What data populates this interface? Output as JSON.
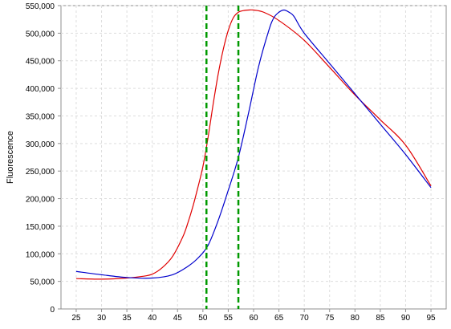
{
  "chart_data": {
    "type": "line",
    "title": "",
    "xlabel": "",
    "ylabel": "Fluorescence",
    "xlim": [
      22,
      98
    ],
    "ylim": [
      0,
      550000
    ],
    "x_ticks": [
      25,
      30,
      35,
      40,
      45,
      50,
      55,
      60,
      65,
      70,
      75,
      80,
      85,
      90,
      95
    ],
    "x_tick_labels": [
      "25",
      "30",
      "35",
      "40",
      "45",
      "50",
      "55",
      "60",
      "65",
      "70",
      "75",
      "80",
      "85",
      "90",
      "95"
    ],
    "y_ticks": [
      0,
      50000,
      100000,
      150000,
      200000,
      250000,
      300000,
      350000,
      400000,
      450000,
      500000,
      550000
    ],
    "y_tick_labels": [
      "0",
      "50,000",
      "100,000",
      "150,000",
      "200,000",
      "250,000",
      "300,000",
      "350,000",
      "400,000",
      "450,000",
      "500,000",
      "550,000"
    ],
    "grid": true,
    "colors": {
      "red_series": "#e00000",
      "blue_series": "#0000cc",
      "markers": "#009900",
      "grid": "#dddddd"
    },
    "series": [
      {
        "color": "#e00000",
        "x": [
          25,
          30,
          35,
          38,
          40,
          42,
          44,
          46,
          47,
          48,
          49,
          50,
          51,
          52,
          53,
          54,
          55,
          56,
          57,
          58,
          59,
          60,
          62,
          65,
          70,
          75,
          80,
          85,
          90,
          95
        ],
        "y": [
          55000,
          54000,
          56000,
          59000,
          63000,
          75000,
          95000,
          130000,
          155000,
          185000,
          220000,
          258000,
          310000,
          370000,
          425000,
          470000,
          505000,
          528000,
          538000,
          541000,
          542000,
          542000,
          538000,
          523000,
          487000,
          438000,
          388000,
          343000,
          297000,
          223000
        ]
      },
      {
        "color": "#0000cc",
        "x": [
          25,
          30,
          35,
          40,
          44,
          47,
          49,
          51,
          53,
          55,
          57,
          59,
          61,
          63,
          64,
          65,
          66,
          67,
          68,
          70,
          75,
          80,
          85,
          90,
          95
        ],
        "y": [
          68000,
          62000,
          57000,
          56000,
          62000,
          77000,
          92000,
          115000,
          160000,
          215000,
          275000,
          355000,
          440000,
          505000,
          528000,
          538000,
          542000,
          538000,
          530000,
          500000,
          445000,
          390000,
          335000,
          280000,
          220000
        ]
      }
    ],
    "vertical_markers": [
      {
        "x": 50.7,
        "style": "dashed",
        "color": "#009900"
      },
      {
        "x": 57.0,
        "style": "dashed",
        "color": "#009900"
      }
    ]
  }
}
